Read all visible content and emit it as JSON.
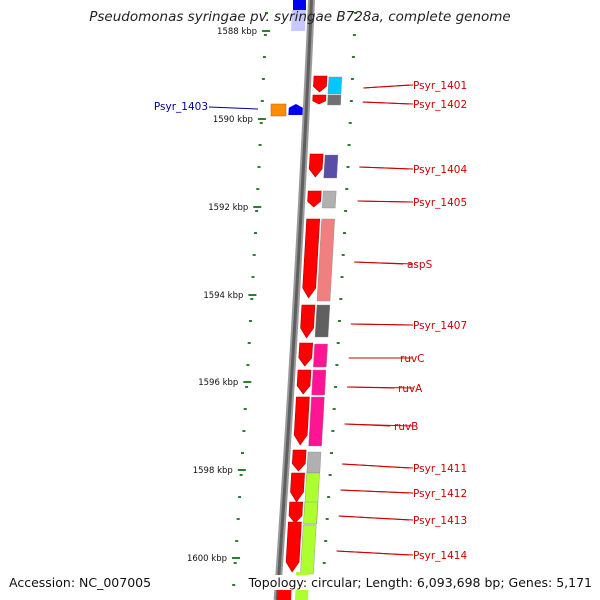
{
  "title": "Pseudomonas syringae pv. syringae B728a, complete genome",
  "footer": {
    "accession": "Accession: NC_007005",
    "topology": "Topology: circular; Length: 6,093,698 bp; Genes: 5,171"
  },
  "colors": {
    "backbone": "#8a8a8a",
    "tick": "#2e7d32",
    "label_forward": "#cc0000",
    "label_reverse": "#000099"
  },
  "scale_labels": [
    "1588 kbp",
    "1590 kbp",
    "1592 kbp",
    "1594 kbp",
    "1596 kbp",
    "1598 kbp",
    "1600 kbp"
  ],
  "genes": [
    {
      "label": "Psyr_1401",
      "strand": "forward",
      "orf_color": "#ff0000",
      "cog_color": "#00c8ff"
    },
    {
      "label": "Psyr_1402",
      "strand": "forward",
      "orf_color": "#ff0000",
      "cog_color": "#707070"
    },
    {
      "label": "Psyr_1403",
      "strand": "reverse",
      "orf_color": "#0000ee",
      "cog_color": "#ff8c00"
    },
    {
      "label": "Psyr_1404",
      "strand": "forward",
      "orf_color": "#ff0000",
      "cog_color": "#5a4fa8"
    },
    {
      "label": "Psyr_1405",
      "strand": "forward",
      "orf_color": "#ff0000",
      "cog_color": "#b0b0b0"
    },
    {
      "label": "aspS",
      "strand": "forward",
      "orf_color": "#ff0000",
      "cog_color": "#f08080"
    },
    {
      "label": "Psyr_1407",
      "strand": "forward",
      "orf_color": "#ff0000",
      "cog_color": "#606060"
    },
    {
      "label": "ruvC",
      "strand": "forward",
      "orf_color": "#ff0000",
      "cog_color": "#ff1493"
    },
    {
      "label": "ruvA",
      "strand": "forward",
      "orf_color": "#ff0000",
      "cog_color": "#ff1493"
    },
    {
      "label": "ruvB",
      "strand": "forward",
      "orf_color": "#ff0000",
      "cog_color": "#ff1493"
    },
    {
      "label": "Psyr_1411",
      "strand": "forward",
      "orf_color": "#ff0000",
      "cog_color": "#b0b0b0"
    },
    {
      "label": "Psyr_1412",
      "strand": "forward",
      "orf_color": "#ff0000",
      "cog_color": "#adff2f"
    },
    {
      "label": "Psyr_1413",
      "strand": "forward",
      "orf_color": "#ff0000",
      "cog_color": "#adff2f"
    },
    {
      "label": "Psyr_1414",
      "strand": "forward",
      "orf_color": "#ff0000",
      "cog_color": "#adff2f"
    }
  ]
}
